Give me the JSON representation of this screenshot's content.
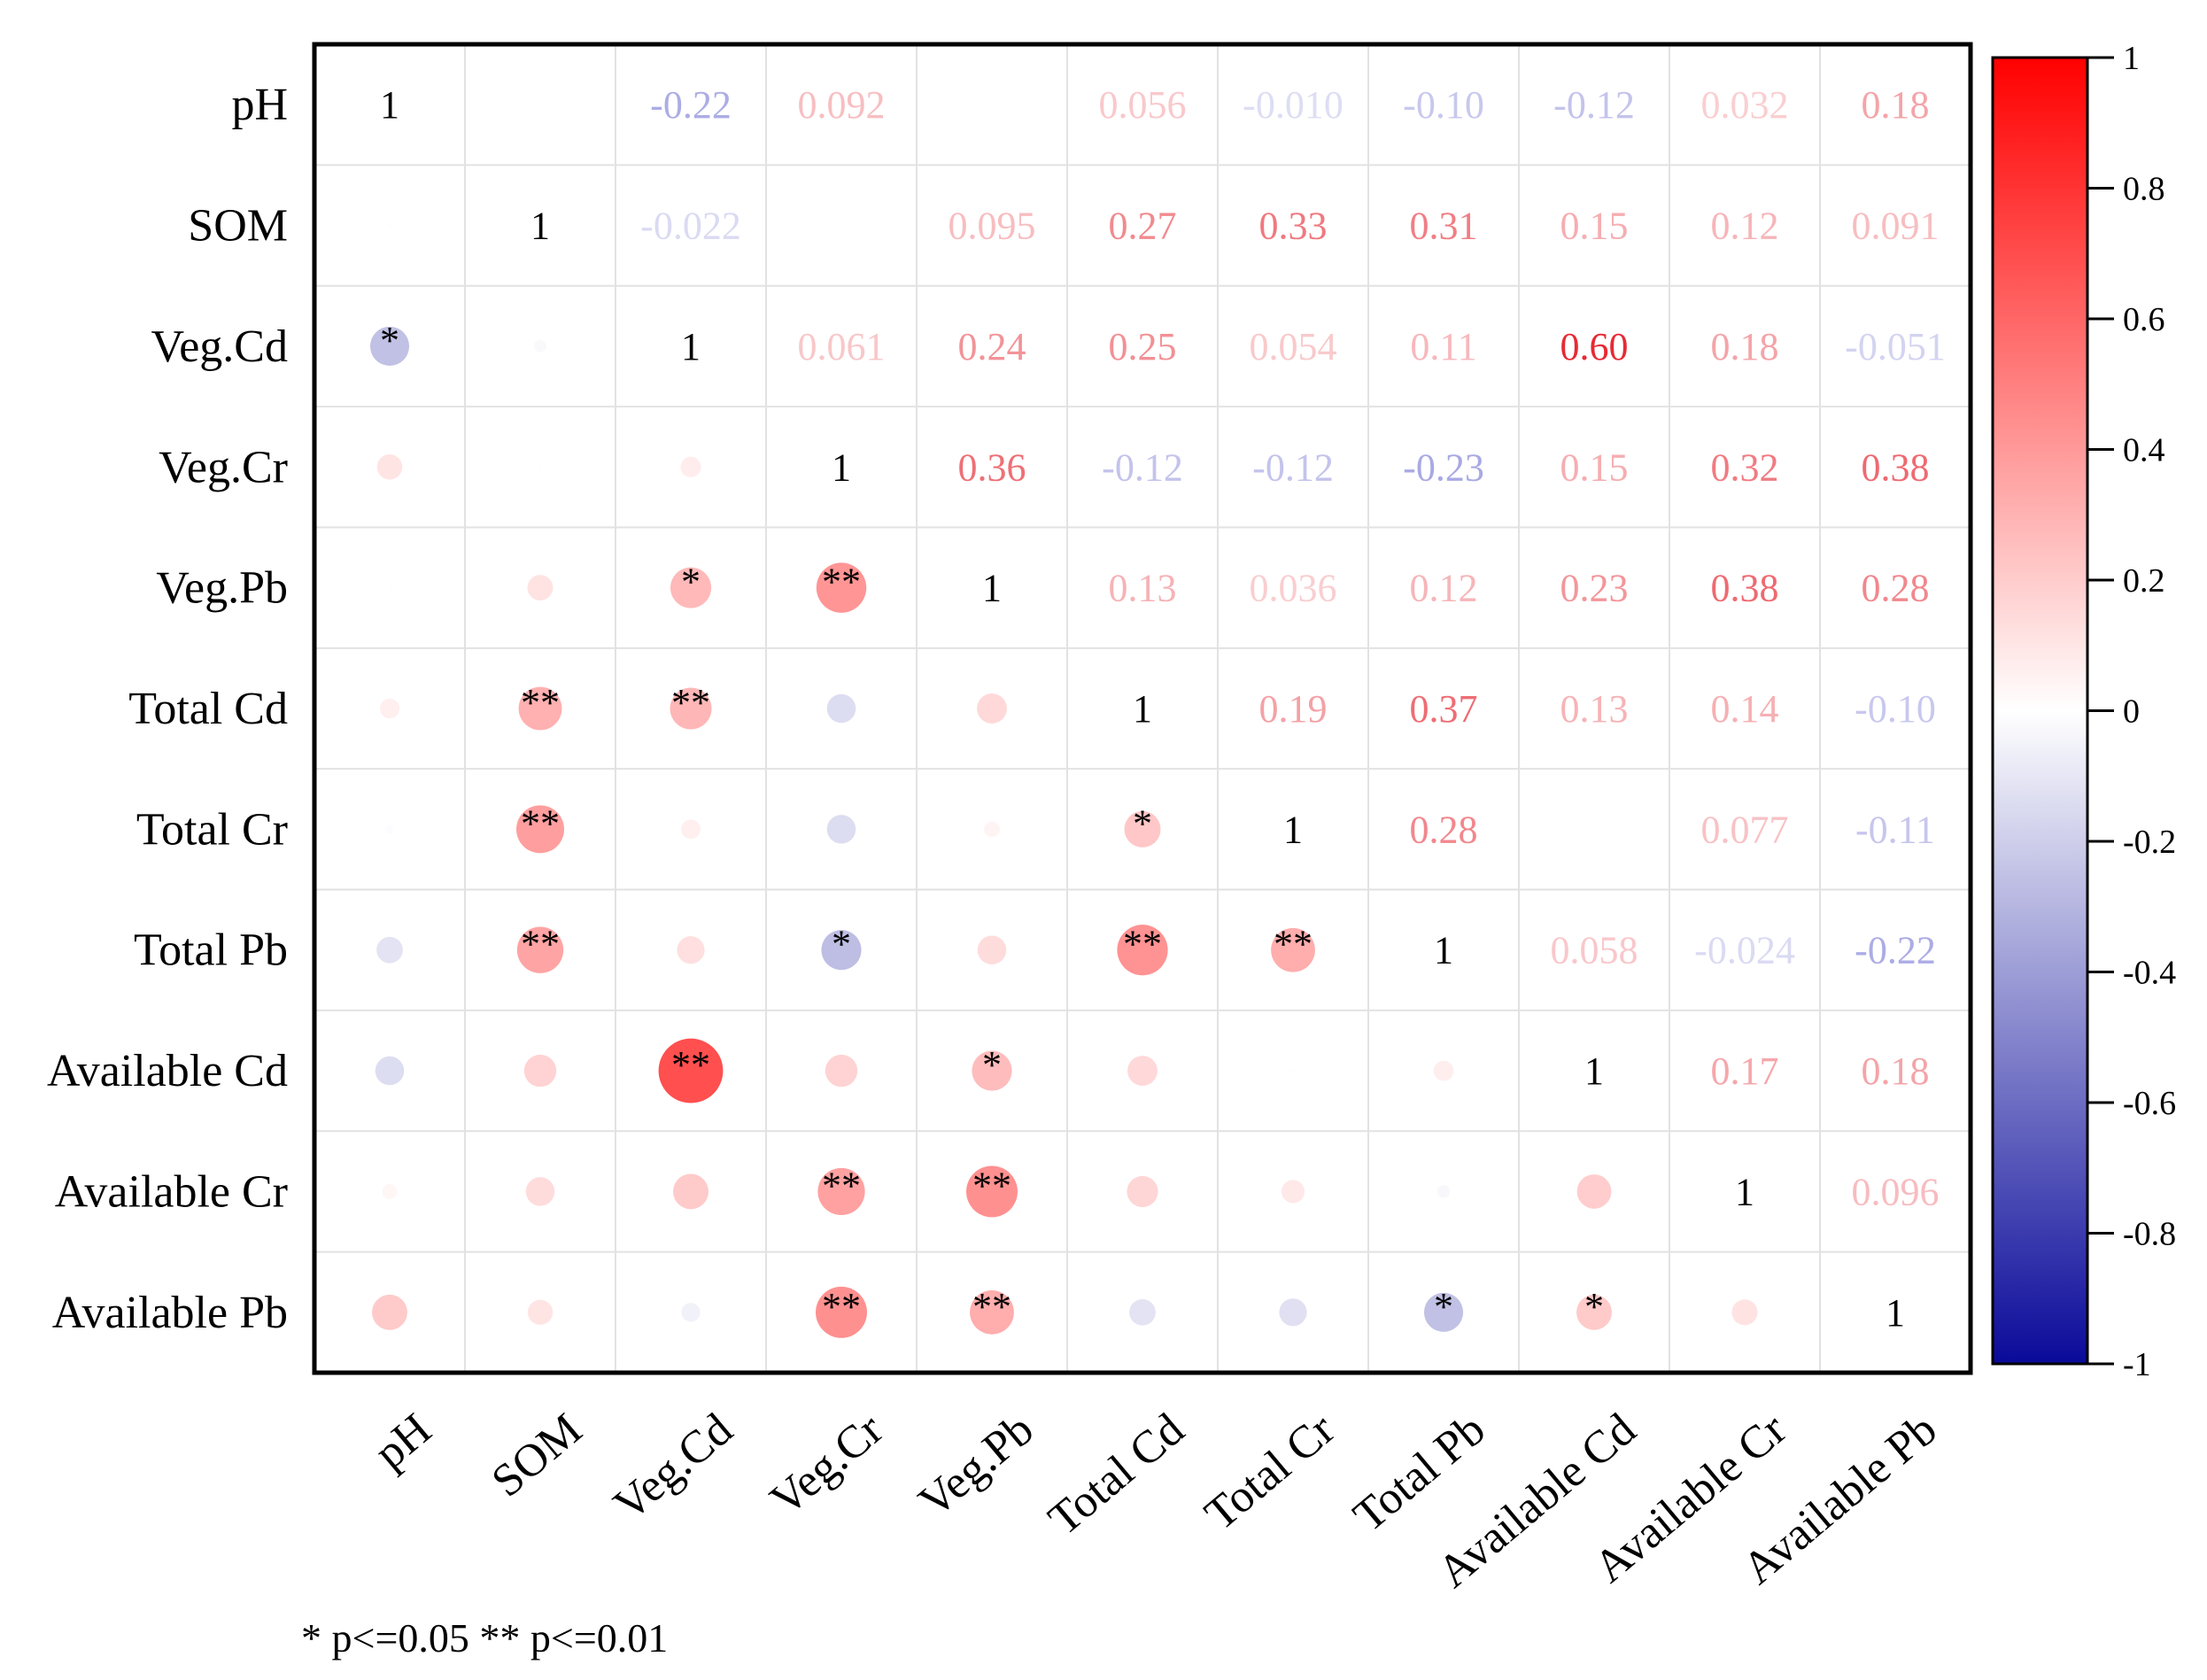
{
  "chart_data": {
    "type": "heatmap",
    "title": "",
    "variables": [
      "pH",
      "SOM",
      "Veg.Cd",
      "Veg.Cr",
      "Veg.Pb",
      "Total Cd",
      "Total Cr",
      "Total Pb",
      "Available Cd",
      "Available Cr",
      "Available Pb"
    ],
    "upper_labels": [
      [
        "1",
        "",
        "-0.22",
        "0.092",
        "",
        "0.056",
        "-0.010",
        "-0.10",
        "-0.12",
        "0.032",
        "0.18"
      ],
      [
        "",
        "1",
        "-0.022",
        "",
        "0.095",
        "0.27",
        "0.33",
        "0.31",
        "0.15",
        "0.12",
        "0.091"
      ],
      [
        "",
        "",
        "1",
        "0.061",
        "0.24",
        "0.25",
        "0.054",
        "0.11",
        "0.60",
        "0.18",
        "-0.051"
      ],
      [
        "",
        "",
        "",
        "1",
        "0.36",
        "-0.12",
        "-0.12",
        "-0.23",
        "0.15",
        "0.32",
        "0.38"
      ],
      [
        "",
        "",
        "",
        "",
        "1",
        "0.13",
        "0.036",
        "0.12",
        "0.23",
        "0.38",
        "0.28"
      ],
      [
        "",
        "",
        "",
        "",
        "",
        "1",
        "0.19",
        "0.37",
        "0.13",
        "0.14",
        "-0.10"
      ],
      [
        "",
        "",
        "",
        "",
        "",
        "",
        "1",
        "0.28",
        "",
        "0.077",
        "-0.11"
      ],
      [
        "",
        "",
        "",
        "",
        "",
        "",
        "",
        "1",
        "0.058",
        "-0.024",
        "-0.22"
      ],
      [
        "",
        "",
        "",
        "",
        "",
        "",
        "",
        "",
        "1",
        "0.17",
        "0.18"
      ],
      [
        "",
        "",
        "",
        "",
        "",
        "",
        "",
        "",
        "",
        "1",
        "0.096"
      ],
      [
        "",
        "",
        "",
        "",
        "",
        "",
        "",
        "",
        "",
        "",
        "1"
      ]
    ],
    "lower_values": [
      [
        null,
        null,
        null,
        null,
        null,
        null,
        null,
        null,
        null,
        null,
        null
      ],
      [
        0.005,
        null,
        null,
        null,
        null,
        null,
        null,
        null,
        null,
        null,
        null
      ],
      [
        -0.22,
        -0.022,
        null,
        null,
        null,
        null,
        null,
        null,
        null,
        null,
        null
      ],
      [
        0.092,
        0.004,
        0.061,
        null,
        null,
        null,
        null,
        null,
        null,
        null,
        null
      ],
      [
        0.003,
        0.095,
        0.24,
        0.36,
        null,
        null,
        null,
        null,
        null,
        null,
        null
      ],
      [
        0.056,
        0.27,
        0.25,
        -0.12,
        0.13,
        null,
        null,
        null,
        null,
        null,
        null
      ],
      [
        -0.01,
        0.33,
        0.054,
        -0.12,
        0.036,
        0.19,
        null,
        null,
        null,
        null,
        null
      ],
      [
        -0.1,
        0.31,
        0.11,
        -0.23,
        0.12,
        0.37,
        0.28,
        null,
        null,
        null,
        null
      ],
      [
        -0.12,
        0.15,
        0.6,
        0.15,
        0.23,
        0.13,
        0.004,
        0.058,
        null,
        null,
        null
      ],
      [
        0.032,
        0.12,
        0.18,
        0.32,
        0.38,
        0.14,
        0.077,
        -0.024,
        0.17,
        null,
        null
      ],
      [
        0.18,
        0.091,
        -0.051,
        0.38,
        0.28,
        -0.1,
        -0.11,
        -0.22,
        0.18,
        0.096,
        null
      ]
    ],
    "lower_stars": [
      [
        "",
        "",
        "",
        "",
        "",
        "",
        "",
        "",
        "",
        "",
        ""
      ],
      [
        "",
        "",
        "",
        "",
        "",
        "",
        "",
        "",
        "",
        "",
        ""
      ],
      [
        "*",
        "",
        "",
        "",
        "",
        "",
        "",
        "",
        "",
        "",
        ""
      ],
      [
        "",
        "",
        "",
        "",
        "",
        "",
        "",
        "",
        "",
        "",
        ""
      ],
      [
        "",
        "",
        "*",
        "**",
        "",
        "",
        "",
        "",
        "",
        "",
        ""
      ],
      [
        "",
        "**",
        "**",
        "",
        "",
        "",
        "",
        "",
        "",
        "",
        ""
      ],
      [
        "",
        "**",
        "",
        "",
        "",
        "*",
        "",
        "",
        "",
        "",
        ""
      ],
      [
        "",
        "**",
        "",
        "*",
        "",
        "**",
        "**",
        "",
        "",
        "",
        ""
      ],
      [
        "",
        "",
        "**",
        "",
        "*",
        "",
        "",
        "",
        "",
        "",
        ""
      ],
      [
        "",
        "",
        "",
        "**",
        "**",
        "",
        "",
        "",
        "",
        "",
        ""
      ],
      [
        "",
        "",
        "",
        "**",
        "**",
        "",
        "",
        "*",
        "*",
        "",
        ""
      ]
    ],
    "colorbar": {
      "range": [
        -1,
        1
      ],
      "ticks": [
        "1",
        "0.8",
        "0.6",
        "0.4",
        "0.2",
        "0",
        "-0.2",
        "-0.4",
        "-0.6",
        "-0.8",
        "-1"
      ],
      "color_negative": "#0a0a9a",
      "color_zero": "#ffffff",
      "color_positive": "#ff0000"
    },
    "footnote": "* p<=0.05  ** p<=0.01"
  }
}
